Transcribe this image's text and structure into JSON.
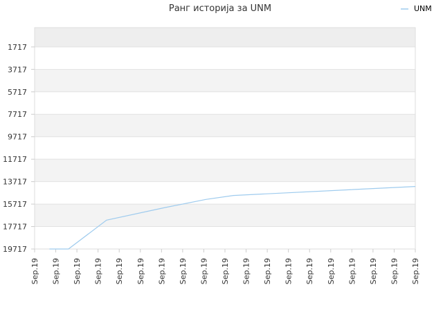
{
  "chart_data": {
    "type": "line",
    "title": "Ранг историја за UNM",
    "legend": {
      "position": "top-right",
      "entries": [
        "UNM"
      ]
    },
    "y_axis": {
      "inverted": true,
      "range": [
        19717,
        0
      ],
      "tick_values": [
        1717,
        3717,
        5717,
        7717,
        9717,
        11717,
        13717,
        15717,
        17717,
        19717
      ],
      "tick_labels": [
        "1717",
        "3717",
        "5717",
        "7717",
        "9717",
        "11717",
        "13717",
        "15717",
        "17717",
        "19717"
      ]
    },
    "x_axis": {
      "tick_labels": [
        "Sep.19",
        "Sep.19",
        "Sep.19",
        "Sep.19",
        "Sep.19",
        "Sep.19",
        "Sep.19",
        "Sep.19",
        "Sep.19",
        "Sep.19",
        "Sep.19",
        "Sep.19",
        "Sep.19",
        "Sep.19",
        "Sep.19",
        "Sep.19",
        "Sep.19",
        "Sep.19",
        "Sep.19"
      ]
    },
    "grid": true,
    "band_colors": [
      "#eeeeee",
      "#f3f3f3"
    ],
    "series": [
      {
        "name": "UNM",
        "color": "#9ecbee",
        "x": [
          0.7,
          1.6,
          3.4,
          6.1,
          8.1,
          9.4,
          18.0
        ],
        "values": [
          19717,
          19717,
          17150,
          16050,
          15300,
          14950,
          14150
        ]
      }
    ]
  }
}
